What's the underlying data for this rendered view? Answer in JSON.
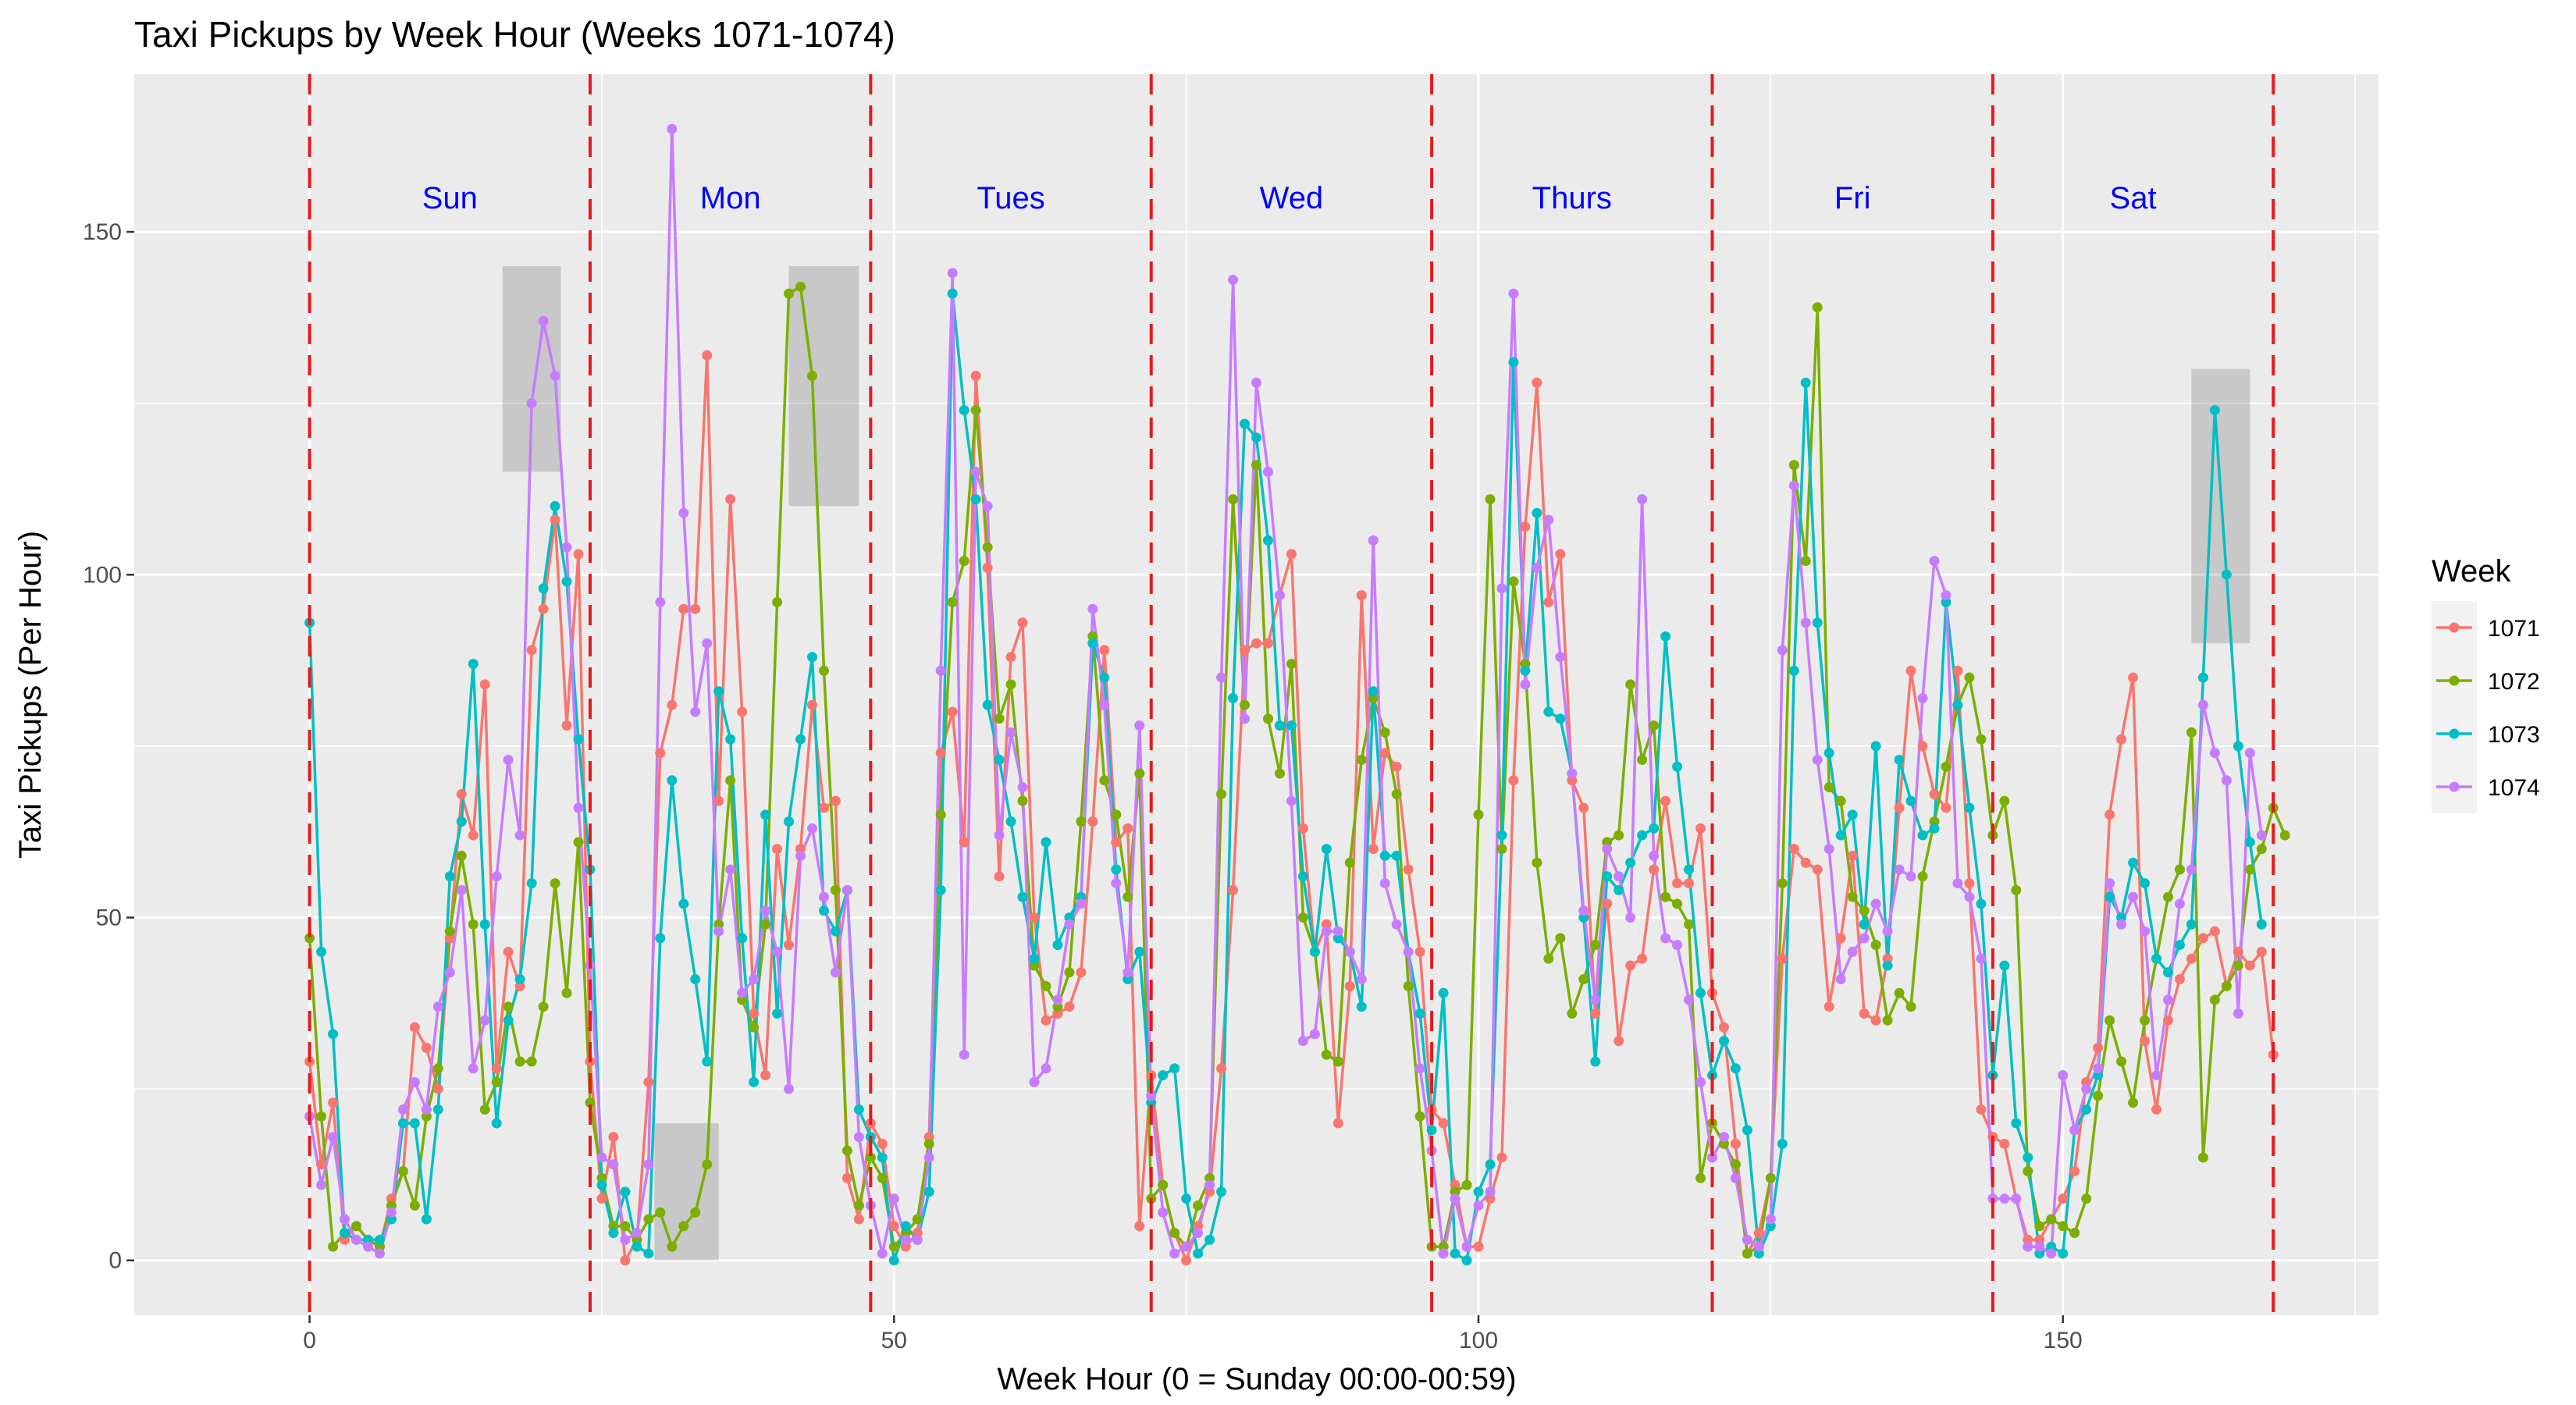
{
  "chart_data": {
    "type": "line",
    "title": "Taxi Pickups by Week Hour (Weeks 1071-1074)",
    "xlabel": "Week Hour (0 = Sunday 00:00-00:59)",
    "ylabel": "Taxi Pickups (Per Hour)",
    "xlim": [
      -15,
      177
    ],
    "ylim": [
      -8,
      173
    ],
    "x_ticks": [
      0,
      50,
      100,
      150
    ],
    "y_ticks": [
      0,
      50,
      100,
      150
    ],
    "grid": true,
    "legend_position": "right",
    "legend_title": "Week",
    "day_boundaries": [
      0,
      24,
      48,
      72,
      96,
      120,
      144,
      168
    ],
    "boundary_color": "#e41a1c",
    "day_labels": [
      {
        "label": "Sun",
        "x": 12
      },
      {
        "label": "Mon",
        "x": 36
      },
      {
        "label": "Tues",
        "x": 60
      },
      {
        "label": "Wed",
        "x": 84
      },
      {
        "label": "Thurs",
        "x": 108
      },
      {
        "label": "Fri",
        "x": 132
      },
      {
        "label": "Sat",
        "x": 156
      }
    ],
    "day_label_y": 155,
    "day_label_color": "#0000ff",
    "highlight_boxes": [
      {
        "x0": 16.5,
        "x1": 21.5,
        "y0": 115,
        "y1": 145
      },
      {
        "x0": 29.5,
        "x1": 35,
        "y0": 0,
        "y1": 20
      },
      {
        "x0": 41,
        "x1": 47,
        "y0": 110,
        "y1": 145
      },
      {
        "x0": 161,
        "x1": 166,
        "y0": 90,
        "y1": 130
      }
    ],
    "series": [
      {
        "name": "1071",
        "color": "#f8766d",
        "values": [
          29,
          14,
          23,
          3,
          5,
          3,
          2,
          9,
          13,
          34,
          31,
          25,
          47,
          68,
          62,
          84,
          28,
          45,
          40,
          89,
          95,
          108,
          78,
          103,
          29,
          9,
          18,
          0,
          3,
          26,
          74,
          81,
          95,
          95,
          132,
          67,
          111,
          80,
          36,
          27,
          60,
          46,
          60,
          81,
          66,
          67,
          12,
          6,
          20,
          17,
          5,
          2,
          4,
          18,
          74,
          80,
          61,
          129,
          101,
          56,
          88,
          93,
          50,
          35,
          36,
          37,
          42,
          64,
          89,
          61,
          63,
          5,
          27,
          11,
          4,
          0,
          5,
          10,
          28,
          54,
          89,
          90,
          90,
          97,
          103,
          63,
          45,
          49,
          20,
          40,
          97,
          60,
          74,
          72,
          57,
          45,
          22,
          20,
          11,
          2,
          2,
          9,
          15,
          70,
          107,
          128,
          96,
          103,
          70,
          66,
          36,
          52,
          32,
          43,
          44,
          57,
          67,
          55,
          55,
          63,
          39,
          34,
          17,
          1,
          4,
          12,
          44,
          60,
          58,
          57,
          37,
          47,
          59,
          36,
          35,
          44,
          66,
          86,
          75,
          68,
          66,
          86,
          55,
          22,
          18,
          17,
          9,
          3,
          3,
          6,
          9,
          13,
          26,
          31,
          65,
          76,
          85,
          32,
          22,
          35,
          41,
          44,
          47,
          48,
          40,
          45,
          43,
          45,
          30
        ]
      },
      {
        "name": "1072",
        "color": "#7cae00",
        "values": [
          47,
          21,
          2,
          4,
          5,
          3,
          2,
          8,
          13,
          8,
          21,
          28,
          48,
          59,
          49,
          22,
          26,
          37,
          29,
          29,
          37,
          55,
          39,
          61,
          23,
          12,
          5,
          5,
          3,
          6,
          7,
          2,
          5,
          7,
          14,
          49,
          70,
          38,
          34,
          49,
          96,
          141,
          142,
          129,
          86,
          54,
          16,
          8,
          15,
          12,
          2,
          4,
          6,
          17,
          65,
          96,
          102,
          124,
          104,
          79,
          84,
          67,
          43,
          40,
          37,
          42,
          64,
          91,
          70,
          65,
          53,
          71,
          9,
          11,
          4,
          2,
          8,
          12,
          68,
          111,
          81,
          116,
          79,
          71,
          87,
          50,
          45,
          30,
          29,
          58,
          73,
          82,
          77,
          68,
          40,
          21,
          2,
          2,
          10,
          11,
          65,
          111,
          60,
          99,
          87,
          58,
          44,
          47,
          36,
          41,
          46,
          61,
          62,
          84,
          73,
          78,
          53,
          52,
          49,
          12,
          20,
          17,
          14,
          1,
          2,
          12,
          55,
          116,
          102,
          139,
          69,
          67,
          53,
          51,
          46,
          35,
          39,
          37,
          56,
          64,
          72,
          81,
          85,
          76,
          62,
          67,
          54,
          13,
          5,
          6,
          5,
          4,
          9,
          24,
          35,
          29,
          23,
          35,
          44,
          53,
          57,
          77,
          15,
          38,
          40,
          43,
          57,
          60,
          66,
          62
        ]
      },
      {
        "name": "1073",
        "color": "#00bfc4",
        "values": [
          93,
          45,
          33,
          4,
          3,
          3,
          3,
          6,
          20,
          20,
          6,
          22,
          56,
          64,
          87,
          49,
          20,
          35,
          41,
          55,
          98,
          110,
          99,
          76,
          57,
          11,
          4,
          10,
          2,
          1,
          47,
          70,
          52,
          41,
          29,
          83,
          76,
          47,
          26,
          65,
          36,
          64,
          76,
          88,
          51,
          48,
          54,
          22,
          18,
          15,
          0,
          5,
          3,
          10,
          54,
          141,
          124,
          111,
          81,
          73,
          64,
          53,
          44,
          61,
          46,
          50,
          53,
          90,
          85,
          57,
          41,
          45,
          23,
          27,
          28,
          9,
          1,
          3,
          10,
          82,
          122,
          120,
          105,
          78,
          78,
          56,
          45,
          60,
          47,
          45,
          37,
          83,
          59,
          59,
          45,
          36,
          19,
          39,
          1,
          0,
          10,
          14,
          62,
          131,
          86,
          109,
          80,
          79,
          71,
          50,
          29,
          56,
          54,
          58,
          62,
          63,
          91,
          72,
          57,
          39,
          27,
          32,
          28,
          19,
          1,
          5,
          17,
          86,
          128,
          93,
          74,
          62,
          65,
          49,
          75,
          43,
          73,
          67,
          62,
          63,
          96,
          81,
          66,
          52,
          27,
          43,
          20,
          15,
          1,
          2,
          1,
          19,
          22,
          27,
          53,
          50,
          58,
          55,
          44,
          42,
          46,
          49,
          85,
          124,
          100,
          75,
          61,
          49
        ]
      },
      {
        "name": "1074",
        "color": "#c77cff",
        "values": [
          21,
          11,
          18,
          6,
          3,
          2,
          1,
          7,
          22,
          26,
          22,
          37,
          42,
          54,
          28,
          35,
          56,
          73,
          62,
          125,
          137,
          129,
          104,
          66,
          43,
          15,
          14,
          3,
          4,
          14,
          96,
          165,
          109,
          80,
          90,
          48,
          57,
          39,
          41,
          51,
          45,
          25,
          59,
          63,
          53,
          42,
          54,
          18,
          8,
          1,
          9,
          3,
          3,
          15,
          86,
          144,
          30,
          115,
          110,
          62,
          77,
          69,
          26,
          28,
          38,
          49,
          52,
          95,
          81,
          55,
          42,
          78,
          24,
          7,
          1,
          2,
          4,
          11,
          85,
          143,
          79,
          128,
          115,
          97,
          67,
          32,
          33,
          48,
          48,
          45,
          41,
          105,
          55,
          49,
          45,
          28,
          16,
          1,
          9,
          2,
          8,
          10,
          98,
          141,
          84,
          101,
          108,
          88,
          71,
          51,
          38,
          60,
          56,
          50,
          111,
          59,
          47,
          46,
          38,
          26,
          15,
          18,
          12,
          3,
          2,
          6,
          89,
          113,
          93,
          73,
          60,
          41,
          45,
          47,
          52,
          48,
          57,
          56,
          82,
          102,
          97,
          55,
          53,
          44,
          9,
          9,
          9,
          2,
          2,
          1,
          27,
          19,
          25,
          28,
          55,
          49,
          53,
          48,
          27,
          38,
          52,
          57,
          81,
          74,
          70,
          36,
          74,
          62
        ]
      }
    ]
  }
}
